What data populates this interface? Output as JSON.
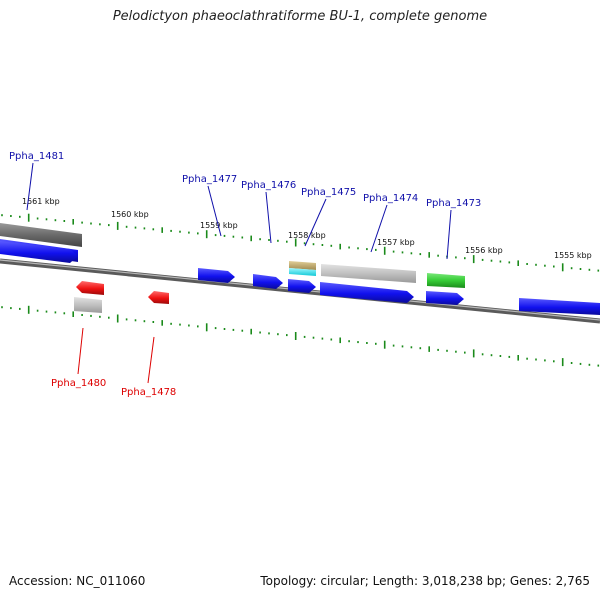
{
  "title": "Pelodictyon phaeoclathratiforme BU-1, complete genome",
  "footer": {
    "accession": "Accession: NC_011060",
    "summary": "Topology: circular; Length: 3,018,238 bp; Genes: 2,765"
  },
  "colors": {
    "forward_gene": "#1a1aee",
    "reverse_gene": "#ee1111",
    "dark_gray": "#6e6e6e",
    "light_gray": "#c2c2c2",
    "tan": "#c8b070",
    "cyan": "#22e6ee",
    "green": "#35cc35",
    "tick": "#1a8a1a",
    "forward_label": "#1010aa",
    "reverse_label": "#dd0000"
  },
  "ticks": [
    {
      "label": "1561 kbp"
    },
    {
      "label": "1560 kbp"
    },
    {
      "label": "1559 kbp"
    },
    {
      "label": "1558 kbp"
    },
    {
      "label": "1557 kbp"
    },
    {
      "label": "1556 kbp"
    },
    {
      "label": "1555 kbp"
    }
  ],
  "labels": {
    "forward": [
      {
        "name": "Ppha_1481"
      },
      {
        "name": "Ppha_1477"
      },
      {
        "name": "Ppha_1476"
      },
      {
        "name": "Ppha_1475"
      },
      {
        "name": "Ppha_1474"
      },
      {
        "name": "Ppha_1473"
      }
    ],
    "reverse": [
      {
        "name": "Ppha_1480"
      },
      {
        "name": "Ppha_1478"
      }
    ]
  }
}
